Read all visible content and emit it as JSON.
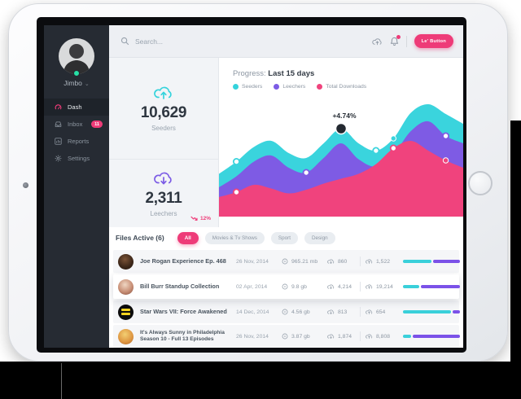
{
  "icons": {
    "chevron": "⌄"
  },
  "theme": {
    "accent_pink": "#ee3b78",
    "teal": "#35d3dc",
    "purple": "#7c5ce5",
    "progress_teal": "#3ad0da",
    "progress_purple": "#7b52e8"
  },
  "sidebar": {
    "user_name": "Jimbo",
    "items": [
      {
        "label": "Dash",
        "icon": "dashboard-icon",
        "active": true
      },
      {
        "label": "Inbox",
        "icon": "inbox-icon",
        "badge": "11"
      },
      {
        "label": "Reports",
        "icon": "reports-icon"
      },
      {
        "label": "Settings",
        "icon": "gear-icon"
      }
    ]
  },
  "topbar": {
    "search_placeholder": "Search...",
    "button_label": "Le' Button"
  },
  "stats": [
    {
      "value": "10,629",
      "label": "Seeders",
      "icon": "cloud-upload-icon",
      "color": "#35d3dc"
    },
    {
      "value": "2,311",
      "label": "Leechers",
      "icon": "cloud-download-icon",
      "color": "#7c5ce5",
      "delta": "12%",
      "delta_direction": "down"
    }
  ],
  "chart_data": {
    "type": "area",
    "title_prefix": "Progress:",
    "title_strong": "Last 15 days",
    "x_count": 15,
    "xlabel": "",
    "ylabel": "",
    "grid": false,
    "legend_position": "top-left",
    "ylim": [
      0,
      100
    ],
    "legend": [
      {
        "name": "Seeders",
        "color": "#35d3dc"
      },
      {
        "name": "Leechers",
        "color": "#7c5ce5"
      },
      {
        "name": "Total Downloads",
        "color": "#f0437d"
      }
    ],
    "series": [
      {
        "name": "Seeders",
        "color": "#3ad4dd",
        "values": [
          35,
          45,
          57,
          62,
          52,
          48,
          60,
          72,
          60,
          54,
          64,
          85,
          92,
          84,
          76
        ]
      },
      {
        "name": "Leechers",
        "color": "#7e5be4",
        "values": [
          24,
          33,
          45,
          50,
          40,
          36,
          48,
          60,
          47,
          41,
          51,
          70,
          78,
          66,
          60
        ]
      },
      {
        "name": "Total Downloads",
        "color": "#f0437d",
        "values": [
          16,
          20,
          26,
          23,
          19,
          22,
          27,
          31,
          35,
          43,
          56,
          62,
          54,
          46,
          40
        ]
      }
    ],
    "markers": [
      {
        "series": 0,
        "index": 1,
        "type": "ring"
      },
      {
        "series": 0,
        "index": 9,
        "type": "ring"
      },
      {
        "series": 0,
        "index": 10,
        "type": "dot"
      },
      {
        "series": 1,
        "index": 5,
        "type": "ring"
      },
      {
        "series": 1,
        "index": 13,
        "type": "ring"
      },
      {
        "series": 2,
        "index": 1,
        "type": "ring"
      },
      {
        "series": 2,
        "index": 10,
        "type": "ring"
      },
      {
        "series": 2,
        "index": 13,
        "type": "dot"
      }
    ],
    "annotation": {
      "series": 0,
      "index": 7,
      "label": "+4.74%"
    }
  },
  "files": {
    "title": "Files Active (6)",
    "filters": [
      {
        "label": "All",
        "active": true
      },
      {
        "label": "Movies & Tv Shows",
        "active": false
      },
      {
        "label": "Sport",
        "active": false
      },
      {
        "label": "Design",
        "active": false
      }
    ],
    "rows": [
      {
        "title": "Joe Rogan Experience Ep. 468",
        "title2": "",
        "date": "26 Nov, 2014",
        "size": "965.21 mb",
        "down": "860",
        "up": "1,522",
        "progress_teal_pct": 50
      },
      {
        "title": "Bill Burr Standup Collection",
        "title2": "",
        "date": "02 Apr, 2014",
        "size": "9.8 gb",
        "down": "4,214",
        "up": "19,214",
        "progress_teal_pct": 28
      },
      {
        "title": "Star Wars VII: Force Awakened",
        "title2": "",
        "date": "14 Dec, 2014",
        "size": "4.56 gb",
        "down": "813",
        "up": "654",
        "progress_teal_pct": 84
      },
      {
        "title": "It's Always Sunny in Philadelphia",
        "title2": "Season 10 - Full 13 Episodes",
        "date": "26 Nov, 2014",
        "size": "3.87 gb",
        "down": "1,874",
        "up": "8,808",
        "progress_teal_pct": 14
      }
    ]
  }
}
